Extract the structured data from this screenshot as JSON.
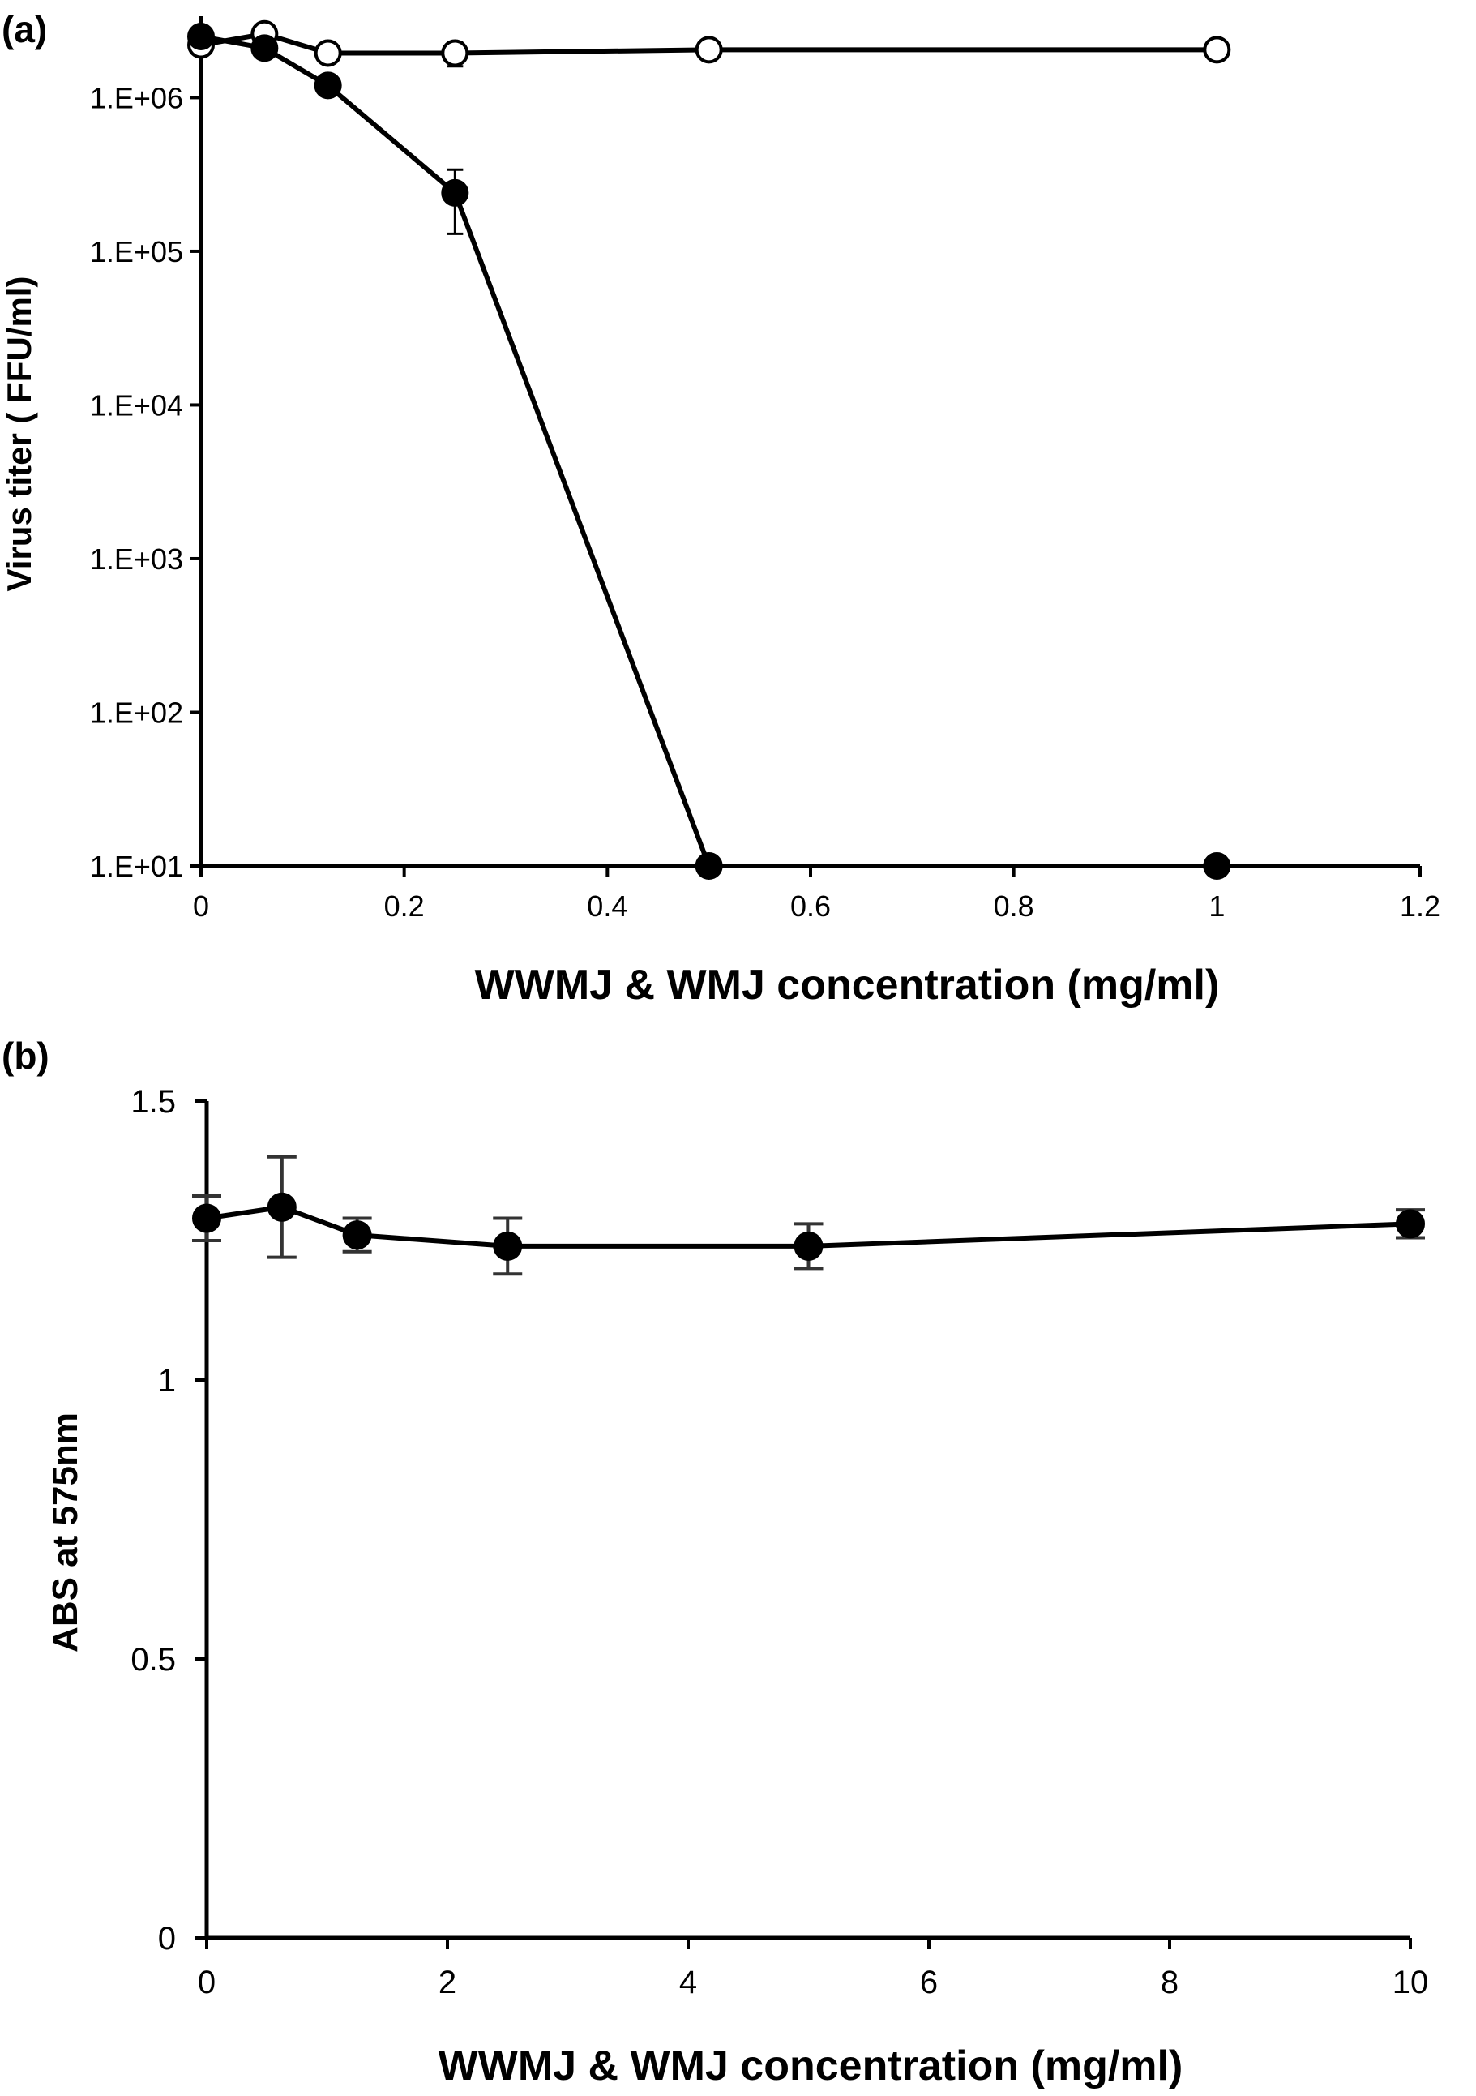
{
  "chart_data": [
    {
      "panel": "(a)",
      "type": "line",
      "xlabel": "WWMJ & WMJ concentration (mg/ml)",
      "ylabel": "Virus titer ( FFU/ml)",
      "xlim": [
        0,
        1.2
      ],
      "ylim": [
        10,
        3000000
      ],
      "y_scale": "log",
      "x_ticks": [
        0,
        0.2,
        0.4,
        0.6,
        0.8,
        1,
        1.2
      ],
      "x_tick_labels": [
        "0",
        "0.2",
        "0.4",
        "0.6",
        "0.8",
        "1",
        "1.2"
      ],
      "y_ticks": [
        10,
        100,
        1000,
        10000,
        100000,
        1000000
      ],
      "y_tick_labels": [
        "1.E+01",
        "1.E+02",
        "1.E+03",
        "1.E+04",
        "1.E+05",
        "1.E+06"
      ],
      "grid": false,
      "series": [
        {
          "marker": "filled-circle",
          "points": [
            {
              "x": 0,
              "y": 2500000,
              "err_lo": 0,
              "err_hi": 0
            },
            {
              "x": 0.0625,
              "y": 2100000,
              "err_lo": 0,
              "err_hi": 0
            },
            {
              "x": 0.125,
              "y": 1200000,
              "err_lo": 0,
              "err_hi": 0
            },
            {
              "x": 0.25,
              "y": 240000,
              "err_lo": 110000,
              "err_hi": 100000
            },
            {
              "x": 0.5,
              "y": 10,
              "err_lo": 0,
              "err_hi": 0
            },
            {
              "x": 1,
              "y": 10,
              "err_lo": 0,
              "err_hi": 0
            }
          ]
        },
        {
          "marker": "open-circle",
          "points": [
            {
              "x": 0,
              "y": 2200000,
              "err_lo": 0,
              "err_hi": 0
            },
            {
              "x": 0.0625,
              "y": 2600000,
              "err_lo": 0,
              "err_hi": 0
            },
            {
              "x": 0.125,
              "y": 1950000,
              "err_lo": 0,
              "err_hi": 0
            },
            {
              "x": 0.25,
              "y": 1950000,
              "err_lo": 350000,
              "err_hi": 350000
            },
            {
              "x": 0.5,
              "y": 2050000,
              "err_lo": 0,
              "err_hi": 0
            },
            {
              "x": 1,
              "y": 2050000,
              "err_lo": 0,
              "err_hi": 0
            }
          ]
        }
      ]
    },
    {
      "panel": "(b)",
      "type": "line",
      "xlabel": "WWMJ & WMJ concentration (mg/ml)",
      "ylabel": "ABS at 575nm",
      "xlim": [
        0,
        10
      ],
      "ylim": [
        0,
        1.5
      ],
      "y_scale": "linear",
      "x_ticks": [
        0,
        2,
        4,
        6,
        8,
        10
      ],
      "x_tick_labels": [
        "0",
        "2",
        "4",
        "6",
        "8",
        "10"
      ],
      "y_ticks": [
        0,
        0.5,
        1,
        1.5
      ],
      "y_tick_labels": [
        "0",
        "0.5",
        "1",
        "1.5"
      ],
      "grid": false,
      "series": [
        {
          "marker": "filled-circle",
          "points": [
            {
              "x": 0,
              "y": 1.29,
              "err": 0.04
            },
            {
              "x": 0.625,
              "y": 1.31,
              "err": 0.09
            },
            {
              "x": 1.25,
              "y": 1.26,
              "err": 0.03
            },
            {
              "x": 2.5,
              "y": 1.24,
              "err": 0.05
            },
            {
              "x": 5,
              "y": 1.24,
              "err": 0.04
            },
            {
              "x": 10,
              "y": 1.28,
              "err": 0.025
            }
          ]
        }
      ]
    }
  ]
}
